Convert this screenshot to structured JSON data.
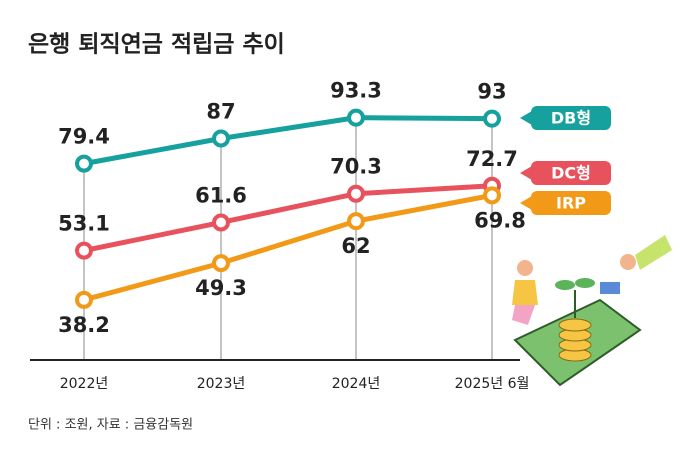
{
  "chart_data": {
    "type": "line",
    "title": "은행 퇴직연금 적립금 추이",
    "note": "단위 : 조원, 자료 : 금융감독원",
    "categories": [
      "2022년",
      "2023년",
      "2024년",
      "2025년 6월"
    ],
    "series": [
      {
        "name": "DB형",
        "color": "#16a19e",
        "values": [
          79.4,
          87,
          93.3,
          93
        ]
      },
      {
        "name": "DC형",
        "color": "#e8525c",
        "values": [
          53.1,
          61.6,
          70.3,
          72.7
        ]
      },
      {
        "name": "IRP",
        "color": "#f29a18",
        "values": [
          38.2,
          49.3,
          62,
          69.8
        ]
      }
    ],
    "ylim": [
      20,
      105
    ]
  }
}
